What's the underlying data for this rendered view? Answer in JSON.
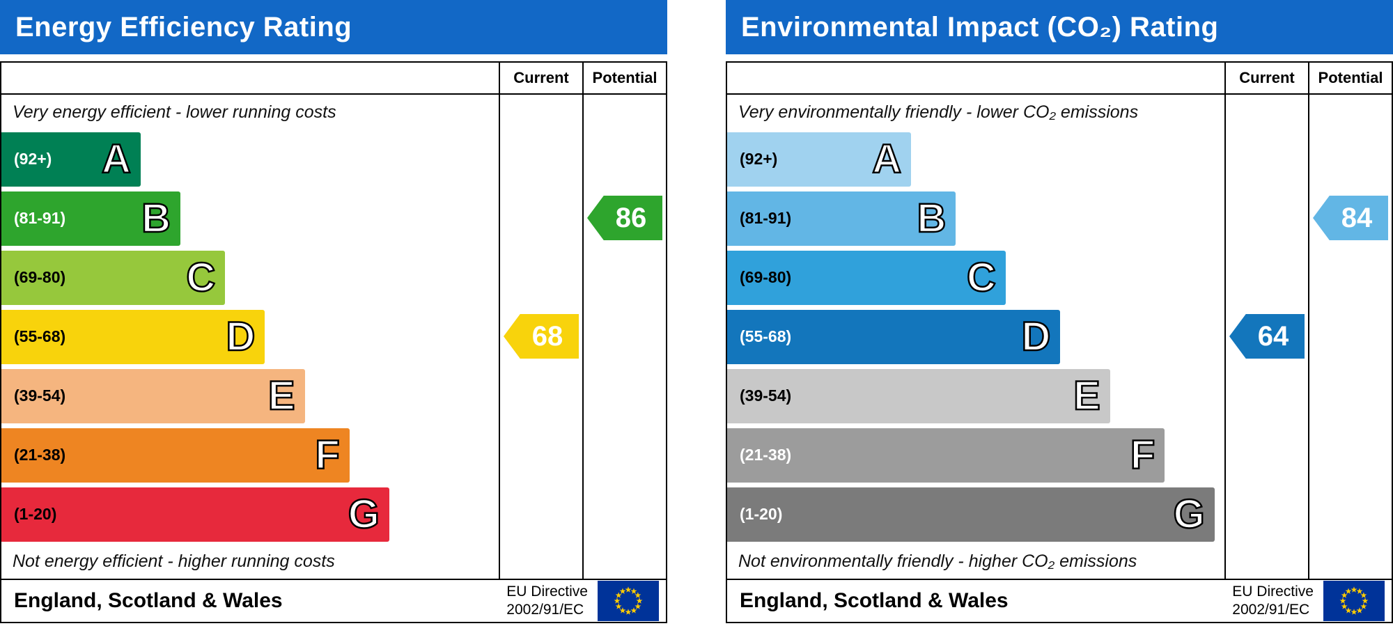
{
  "eu_flag": {
    "background": "#003399",
    "star_color": "#ffcc00"
  },
  "chart_data": [
    {
      "type": "bar",
      "id": "energy-efficiency",
      "title": "Energy Efficiency Rating",
      "header_color": "#1268c6",
      "columns": [
        "Current",
        "Potential"
      ],
      "top_caption": "Very energy efficient - lower running costs",
      "bottom_caption": "Not energy efficient - higher running costs",
      "bands": [
        {
          "letter": "A",
          "range_label": "(92+)",
          "range": [
            92,
            100
          ],
          "color": "#008054",
          "width_pct": 28,
          "label_color": "#ffffff"
        },
        {
          "letter": "B",
          "range_label": "(81-91)",
          "range": [
            81,
            91
          ],
          "color": "#2ea52d",
          "width_pct": 36,
          "label_color": "#ffffff"
        },
        {
          "letter": "C",
          "range_label": "(69-80)",
          "range": [
            69,
            80
          ],
          "color": "#96c83c",
          "width_pct": 45,
          "label_color": "#000000"
        },
        {
          "letter": "D",
          "range_label": "(55-68)",
          "range": [
            55,
            68
          ],
          "color": "#f8d30c",
          "width_pct": 53,
          "label_color": "#000000"
        },
        {
          "letter": "E",
          "range_label": "(39-54)",
          "range": [
            39,
            54
          ],
          "color": "#f5b57f",
          "width_pct": 61,
          "label_color": "#000000"
        },
        {
          "letter": "F",
          "range_label": "(21-38)",
          "range": [
            21,
            38
          ],
          "color": "#ee8522",
          "width_pct": 70,
          "label_color": "#000000"
        },
        {
          "letter": "G",
          "range_label": "(1-20)",
          "range": [
            1,
            20
          ],
          "color": "#e7293c",
          "width_pct": 78,
          "label_color": "#000000"
        }
      ],
      "current": {
        "value": 68,
        "band": "D",
        "band_index": 3,
        "color": "#f8d30c"
      },
      "potential": {
        "value": 86,
        "band": "B",
        "band_index": 1,
        "color": "#2ea52d"
      },
      "footer": {
        "region": "England, Scotland & Wales",
        "directive": [
          "EU Directive",
          "2002/91/EC"
        ]
      }
    },
    {
      "type": "bar",
      "id": "environmental-impact-co2",
      "title": "Environmental Impact (CO₂) Rating",
      "header_color": "#1268c6",
      "columns": [
        "Current",
        "Potential"
      ],
      "top_caption": "Very environmentally friendly - lower CO₂ emissions",
      "bottom_caption": "Not environmentally friendly - higher CO₂ emissions",
      "bands": [
        {
          "letter": "A",
          "range_label": "(92+)",
          "range": [
            92,
            100
          ],
          "color": "#a0d2ef",
          "width_pct": 37,
          "label_color": "#000000"
        },
        {
          "letter": "B",
          "range_label": "(81-91)",
          "range": [
            81,
            91
          ],
          "color": "#62b6e5",
          "width_pct": 46,
          "label_color": "#000000"
        },
        {
          "letter": "C",
          "range_label": "(69-80)",
          "range": [
            69,
            80
          ],
          "color": "#30a1db",
          "width_pct": 56,
          "label_color": "#000000"
        },
        {
          "letter": "D",
          "range_label": "(55-68)",
          "range": [
            55,
            68
          ],
          "color": "#1376bc",
          "width_pct": 67,
          "label_color": "#ffffff"
        },
        {
          "letter": "E",
          "range_label": "(39-54)",
          "range": [
            39,
            54
          ],
          "color": "#c8c8c8",
          "width_pct": 77,
          "label_color": "#000000"
        },
        {
          "letter": "F",
          "range_label": "(21-38)",
          "range": [
            21,
            38
          ],
          "color": "#9c9c9c",
          "width_pct": 88,
          "label_color": "#ffffff"
        },
        {
          "letter": "G",
          "range_label": "(1-20)",
          "range": [
            1,
            20
          ],
          "color": "#7b7b7b",
          "width_pct": 98,
          "label_color": "#ffffff"
        }
      ],
      "current": {
        "value": 64,
        "band": "D",
        "band_index": 3,
        "color": "#1376bc"
      },
      "potential": {
        "value": 84,
        "band": "B",
        "band_index": 1,
        "color": "#62b6e5"
      },
      "footer": {
        "region": "England, Scotland & Wales",
        "directive": [
          "EU Directive",
          "2002/91/EC"
        ]
      }
    }
  ]
}
